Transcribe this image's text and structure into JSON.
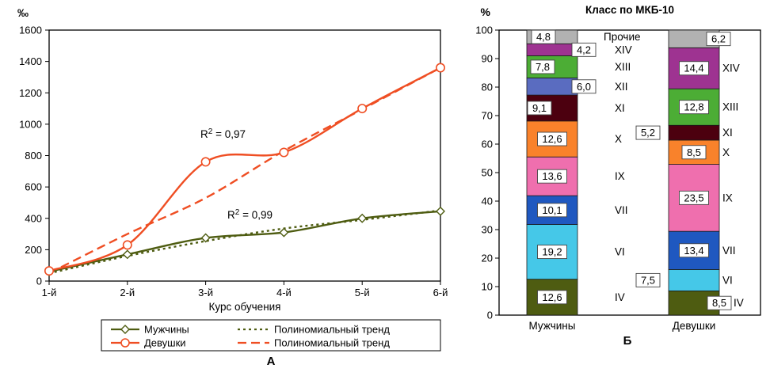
{
  "figure": {
    "panel_a_label": "А",
    "panel_b_label": "Б"
  },
  "chart_data": [
    {
      "type": "line",
      "panel": "А",
      "y_unit": "‰",
      "xlabel": "Курс обучения",
      "categories": [
        "1-й",
        "2-й",
        "3-й",
        "4-й",
        "5-й",
        "6-й"
      ],
      "ylim": [
        0,
        1600
      ],
      "ytick_step": 200,
      "grid": false,
      "legend_position": "bottom",
      "series": [
        {
          "name": "Мужчины",
          "marker": "diamond",
          "dash": "solid",
          "color": "#4e5c11",
          "values": [
            60,
            170,
            275,
            310,
            400,
            445
          ]
        },
        {
          "name": "Девушки",
          "marker": "circle",
          "dash": "solid",
          "color": "#ef4e23",
          "values": [
            65,
            230,
            760,
            820,
            1100,
            1360
          ]
        }
      ],
      "trendlines": [
        {
          "name": "Полиномиальный тренд",
          "series": "Мужчины",
          "dash": "dotted",
          "color": "#4e5c11",
          "values": [
            50,
            160,
            255,
            335,
            390,
            450
          ]
        },
        {
          "name": "Полиномиальный тренд",
          "series": "Девушки",
          "dash": "dashed",
          "color": "#ef4e23",
          "values": [
            50,
            300,
            530,
            830,
            1095,
            1360
          ]
        }
      ],
      "annotations": [
        {
          "series": "Девушки",
          "base": "R",
          "sup": "2",
          "rest": " = 0,97"
        },
        {
          "series": "Мужчины",
          "base": "R",
          "sup": "2",
          "rest": " = 0,99"
        }
      ],
      "legend": [
        {
          "label": "Мужчины",
          "marker": "diamond",
          "dash": "solid",
          "color": "#4e5c11"
        },
        {
          "label": "Девушки",
          "marker": "circle",
          "dash": "solid",
          "color": "#ef4e23"
        },
        {
          "label": "Полиномиальный тренд",
          "marker": "none",
          "dash": "dotted",
          "color": "#4e5c11"
        },
        {
          "label": "Полиномиальный тренд",
          "marker": "none",
          "dash": "dashed",
          "color": "#ef4e23"
        }
      ]
    },
    {
      "type": "bar",
      "stacked": true,
      "panel": "Б",
      "title": "Класс по МКБ-10",
      "y_unit": "%",
      "categories": [
        "Мужчины",
        "Девушки"
      ],
      "ylim": [
        0,
        100
      ],
      "ytick_step": 10,
      "classes": [
        {
          "name": "IV",
          "color": "#4e5c11",
          "values": [
            12.6,
            8.5
          ],
          "labels": [
            "12,6",
            "8,5"
          ]
        },
        {
          "name": "VI",
          "color": "#45c8e8",
          "values": [
            19.2,
            7.5
          ],
          "labels": [
            "19,2",
            "7,5"
          ]
        },
        {
          "name": "VII",
          "color": "#1f58c0",
          "values": [
            10.1,
            13.4
          ],
          "labels": [
            "10,1",
            "13,4"
          ]
        },
        {
          "name": "IX",
          "color": "#ef6fae",
          "values": [
            13.6,
            23.5
          ],
          "labels": [
            "13,6",
            "23,5"
          ]
        },
        {
          "name": "X",
          "color": "#f9822b",
          "values": [
            12.6,
            8.5
          ],
          "labels": [
            "12,6",
            "8,5"
          ]
        },
        {
          "name": "XI",
          "color": "#4c000f",
          "values": [
            9.1,
            5.2
          ],
          "labels": [
            "9,1",
            "5,2"
          ]
        },
        {
          "name": "XII",
          "color": "#5a6cc0",
          "values": [
            6.0,
            null
          ],
          "labels": [
            "6,0",
            null
          ]
        },
        {
          "name": "XIII",
          "color": "#4cad35",
          "values": [
            7.8,
            12.8
          ],
          "labels": [
            "7,8",
            "12,8"
          ]
        },
        {
          "name": "XIV",
          "color": "#9e3391",
          "values": [
            4.2,
            14.4
          ],
          "labels": [
            "4,2",
            "14,4"
          ]
        },
        {
          "name": "Прочие",
          "color": "#b2b2b2",
          "values": [
            4.8,
            6.2
          ],
          "labels": [
            "4,8",
            "6,2"
          ]
        }
      ]
    }
  ]
}
